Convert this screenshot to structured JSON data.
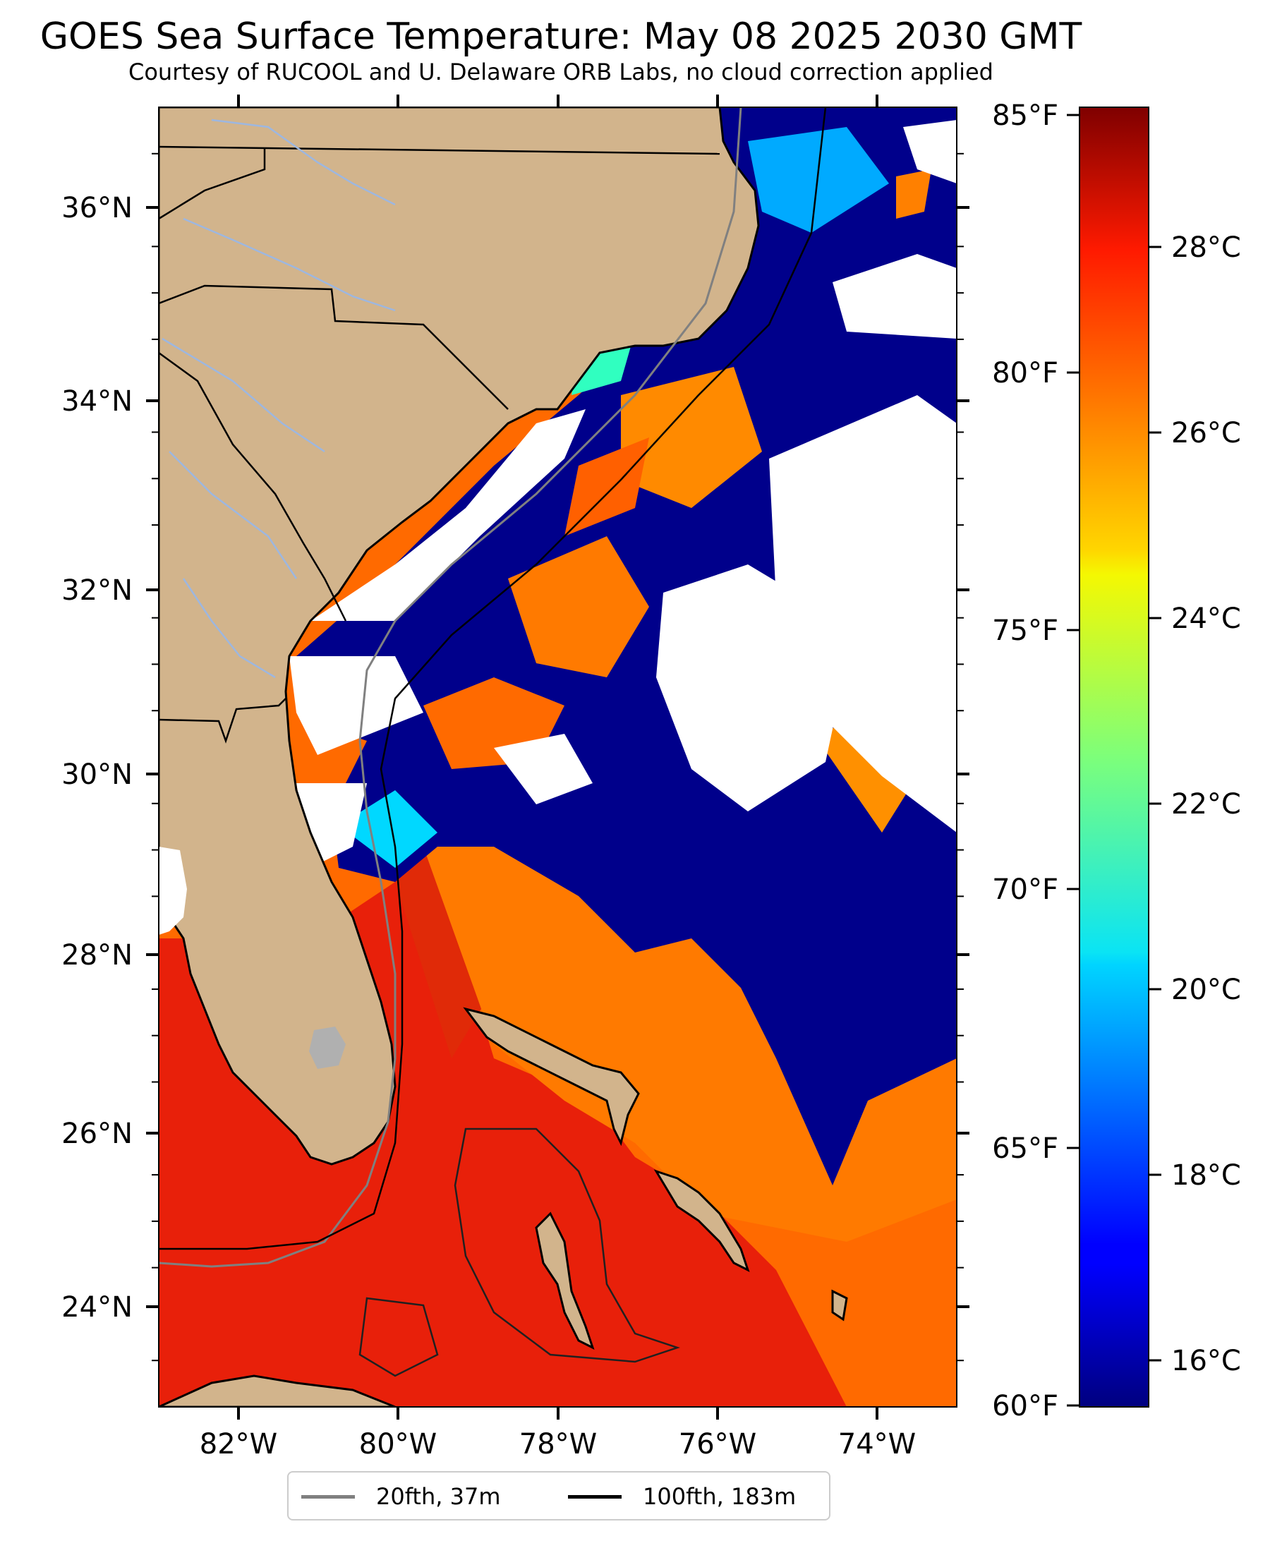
{
  "title": "GOES Sea Surface Temperature: May 08 2025 2030 GMT",
  "subtitle": "Courtesy of RUCOOL and U. Delaware ORB Labs, no cloud correction applied",
  "map": {
    "extent": {
      "lon_min": -83.0,
      "lon_max": -73.0,
      "lat_min": 23.0,
      "lat_max": 37.0
    },
    "lat_ticks": [
      "24°N",
      "26°N",
      "28°N",
      "30°N",
      "32°N",
      "34°N",
      "36°N"
    ],
    "lon_ticks": [
      "82°W",
      "80°W",
      "78°W",
      "76°W",
      "74°W"
    ],
    "colors": {
      "land": "#d2b48c",
      "cloud": "#ffffff",
      "rivers": "#9db7e0",
      "lakes": "#b0b0b0",
      "cold_water": "#00008b",
      "warm_water": "#ee3300"
    }
  },
  "colorbar": {
    "colormap": "jet",
    "celsius_labels": [
      "16°C",
      "18°C",
      "20°C",
      "22°C",
      "24°C",
      "26°C",
      "28°C"
    ],
    "fahrenheit_labels": [
      "60°F",
      "65°F",
      "70°F",
      "75°F",
      "80°F",
      "85°F"
    ],
    "range_f": [
      60,
      85
    ]
  },
  "legend": {
    "items": [
      {
        "label": "20fth, 37m",
        "color": "#808080"
      },
      {
        "label": "100fth, 183m",
        "color": "#000000"
      }
    ]
  }
}
